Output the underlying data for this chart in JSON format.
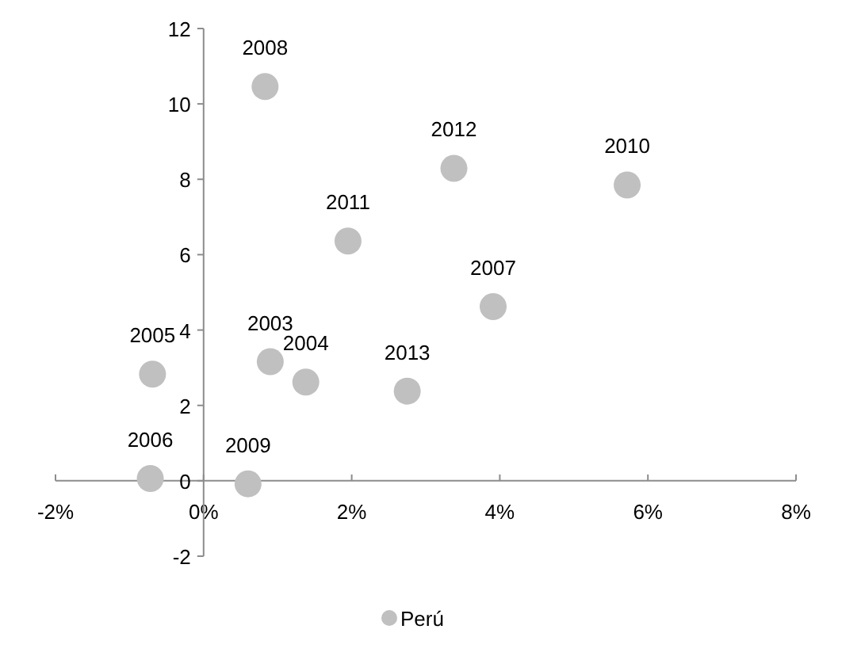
{
  "chart_data": {
    "type": "scatter",
    "x": [
      0.83,
      3.38,
      5.72,
      1.95,
      3.91,
      0.9,
      1.38,
      2.75,
      -0.69,
      -0.72,
      0.6
    ],
    "series": [
      {
        "name": "Perú",
        "color": "#c0c0c0",
        "values": [
          10.46,
          8.29,
          7.85,
          6.36,
          4.62,
          3.16,
          2.62,
          2.38,
          2.83,
          0.06,
          -0.08
        ]
      }
    ],
    "annotations": [
      {
        "text": "2008",
        "x": 0.83,
        "y": 10.46
      },
      {
        "text": "2012",
        "x": 3.38,
        "y": 8.29
      },
      {
        "text": "2010",
        "x": 5.72,
        "y": 7.85
      },
      {
        "text": "2011",
        "x": 1.95,
        "y": 6.36
      },
      {
        "text": "2007",
        "x": 3.91,
        "y": 4.62
      },
      {
        "text": "2003",
        "x": 0.9,
        "y": 3.16
      },
      {
        "text": "2004",
        "x": 1.38,
        "y": 2.62
      },
      {
        "text": "2013",
        "x": 2.75,
        "y": 2.38
      },
      {
        "text": "2005",
        "x": -0.69,
        "y": 2.83
      },
      {
        "text": "2006",
        "x": -0.72,
        "y": 0.06
      },
      {
        "text": "2009",
        "x": 0.6,
        "y": -0.08
      }
    ],
    "xlim": [
      -2,
      8
    ],
    "xticks": [
      {
        "value": -2,
        "label": "-2%"
      },
      {
        "value": 0,
        "label": "0%"
      },
      {
        "value": 2,
        "label": "2%"
      },
      {
        "value": 4,
        "label": "4%"
      },
      {
        "value": 6,
        "label": "6%"
      },
      {
        "value": 8,
        "label": "8%"
      }
    ],
    "ylim": [
      -2,
      12
    ],
    "yticks": [
      -2,
      0,
      2,
      4,
      6,
      8,
      10,
      12
    ],
    "marker": "circle",
    "grid": false,
    "legend": "bottom"
  }
}
